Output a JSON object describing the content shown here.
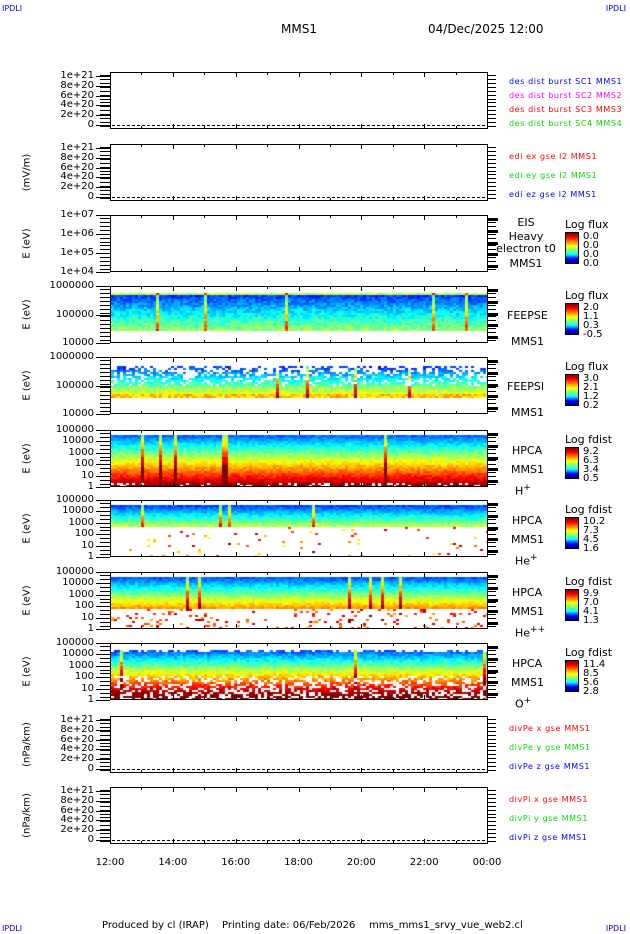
{
  "corners": {
    "tl": "IPDLI",
    "tr": "IPDLI",
    "bl": "IPDLI",
    "br": "IPDLI"
  },
  "header": {
    "mission": "MMS1",
    "datetime": "04/Dec/2025 12:00"
  },
  "footer": {
    "produced": "Produced by cl (IRAP)",
    "printing": "Printing date: 06/Feb/2026",
    "file": "mms_mms1_srvy_vue_web2.cl"
  },
  "colors": {
    "blue": "#0000ff",
    "magenta": "#ff00ff",
    "red": "#ff0000",
    "green": "#00dd00"
  },
  "chart_data": {
    "type": "heatmap",
    "x_ticks": [
      "12:00",
      "14:00",
      "16:00",
      "18:00",
      "20:00",
      "22:00",
      "00:00"
    ],
    "panels": [
      {
        "kind": "line",
        "ylabel": "",
        "yscale": "linear",
        "ylim": [
          -8e+19,
          1.08e+21
        ],
        "yticks": [
          "0",
          "2e+20",
          "4e+20",
          "6e+20",
          "8e+20",
          "1e+21"
        ],
        "ytick_values": [
          0,
          2e+20,
          4e+20,
          6e+20,
          8e+20,
          1e+21
        ],
        "dashed_zero": true,
        "legend": [
          {
            "text": "des dist burst SC1 MMS1",
            "color": "#0000ff"
          },
          {
            "text": "des dist burst SC2 MMS2",
            "color": "#ff00ff"
          },
          {
            "text": "des dist burst SC3 MMS3",
            "color": "#ff0000"
          },
          {
            "text": "des dist burst SC4 MMS4",
            "color": "#00dd00"
          }
        ]
      },
      {
        "kind": "line",
        "ylabel": "(mV/m)",
        "yscale": "linear",
        "ylim": [
          -8e+19,
          1.08e+21
        ],
        "yticks": [
          "0",
          "2e+20",
          "4e+20",
          "6e+20",
          "8e+20",
          "1e+21"
        ],
        "ytick_values": [
          0,
          2e+20,
          4e+20,
          6e+20,
          8e+20,
          1e+21
        ],
        "dashed_zero": true,
        "legend": [
          {
            "text": "edi ex gse l2 MMS1",
            "color": "#ff0000"
          },
          {
            "text": "edi ey gse l2 MMS1",
            "color": "#00dd00"
          },
          {
            "text": "edi ez gse l2 MMS1",
            "color": "#0000ff"
          }
        ]
      },
      {
        "kind": "spec",
        "profile": "empty",
        "ylabel": "E (eV)",
        "yscale": "log",
        "ylim": [
          10000.0,
          10000000.0
        ],
        "yticks": [
          "1e+04",
          "1e+05",
          "1e+06",
          "1e+07"
        ],
        "ytick_values": [
          10000.0,
          100000.0,
          1000000.0,
          10000000.0
        ],
        "labels": [
          "EIS",
          "Heavy electron t0",
          "MMS1"
        ],
        "cbar_title": "Log flux",
        "cbar_values": [
          "0.0",
          "0.0",
          "0.0",
          "0.0"
        ]
      },
      {
        "kind": "spec",
        "profile": "feepse",
        "ylabel": "E (eV)",
        "yscale": "log",
        "ylim": [
          10000.0,
          1000000.0
        ],
        "yticks": [
          "10000",
          "100000",
          "1000000"
        ],
        "ytick_values": [
          10000.0,
          100000.0,
          1000000.0
        ],
        "labels": [
          "FEEPSE",
          "MMS1"
        ],
        "cbar_title": "Log flux",
        "cbar_values": [
          "2.0",
          "1.1",
          "0.3",
          "-0.5"
        ]
      },
      {
        "kind": "spec",
        "profile": "feepsi",
        "ylabel": "E (eV)",
        "yscale": "log",
        "ylim": [
          10000.0,
          1000000.0
        ],
        "yticks": [
          "10000",
          "100000",
          "1000000"
        ],
        "ytick_values": [
          10000.0,
          100000.0,
          1000000.0
        ],
        "labels": [
          "FEEPSI",
          "MMS1"
        ],
        "cbar_title": "Log flux",
        "cbar_values": [
          "3.0",
          "2.1",
          "1.2",
          "0.2"
        ]
      },
      {
        "kind": "spec",
        "profile": "hplus",
        "ylabel": "E (eV)",
        "yscale": "log",
        "ylim": [
          1,
          100000.0
        ],
        "yticks": [
          "1",
          "10",
          "100",
          "1000",
          "10000",
          "100000"
        ],
        "ytick_values": [
          1,
          10,
          100,
          1000,
          10000,
          100000
        ],
        "labels": [
          "HPCA",
          "MMS1",
          "H+"
        ],
        "cbar_title": "Log fdist",
        "cbar_values": [
          "9.2",
          "6.3",
          "3.4",
          "0.5"
        ]
      },
      {
        "kind": "spec",
        "profile": "heplus",
        "ylabel": "E (eV)",
        "yscale": "log",
        "ylim": [
          1,
          100000.0
        ],
        "yticks": [
          "1",
          "10",
          "100",
          "1000",
          "10000",
          "100000"
        ],
        "ytick_values": [
          1,
          10,
          100,
          1000,
          10000,
          100000
        ],
        "labels": [
          "HPCA",
          "MMS1",
          "He+"
        ],
        "cbar_title": "Log fdist",
        "cbar_values": [
          "10.2",
          "7.3",
          "4.5",
          "1.6"
        ]
      },
      {
        "kind": "spec",
        "profile": "hepp",
        "ylabel": "E (eV)",
        "yscale": "log",
        "ylim": [
          1,
          100000.0
        ],
        "yticks": [
          "1",
          "10",
          "100",
          "1000",
          "10000",
          "100000"
        ],
        "ytick_values": [
          1,
          10,
          100,
          1000,
          10000,
          100000
        ],
        "labels": [
          "HPCA",
          "MMS1",
          "He++"
        ],
        "cbar_title": "Log fdist",
        "cbar_values": [
          "9.9",
          "7.0",
          "4.1",
          "1.3"
        ]
      },
      {
        "kind": "spec",
        "profile": "oplus",
        "ylabel": "E (eV)",
        "yscale": "log",
        "ylim": [
          1,
          100000.0
        ],
        "yticks": [
          "1",
          "10",
          "100",
          "1000",
          "10000",
          "100000"
        ],
        "ytick_values": [
          1,
          10,
          100,
          1000,
          10000,
          100000
        ],
        "labels": [
          "HPCA",
          "MMS1",
          "O+"
        ],
        "cbar_title": "Log fdist",
        "cbar_values": [
          "11.4",
          "8.5",
          "5.6",
          "2.8"
        ]
      },
      {
        "kind": "line",
        "ylabel": "(nPa/km)",
        "yscale": "linear",
        "ylim": [
          -8e+19,
          1.08e+21
        ],
        "yticks": [
          "0",
          "2e+20",
          "4e+20",
          "6e+20",
          "8e+20",
          "1e+21"
        ],
        "ytick_values": [
          0,
          2e+20,
          4e+20,
          6e+20,
          8e+20,
          1e+21
        ],
        "dashed_zero": true,
        "legend": [
          {
            "text": "divPe x gse MMS1",
            "color": "#ff0000"
          },
          {
            "text": "divPe y gse MMS1",
            "color": "#00dd00"
          },
          {
            "text": "divPe z gse MMS1",
            "color": "#0000ff"
          }
        ]
      },
      {
        "kind": "line",
        "ylabel": "(nPa/km)",
        "yscale": "linear",
        "ylim": [
          -8e+19,
          1.08e+21
        ],
        "yticks": [
          "0",
          "2e+20",
          "4e+20",
          "6e+20",
          "8e+20",
          "1e+21"
        ],
        "ytick_values": [
          0,
          2e+20,
          4e+20,
          6e+20,
          8e+20,
          1e+21
        ],
        "dashed_zero": true,
        "legend": [
          {
            "text": "divPi x gse MMS1",
            "color": "#ff0000"
          },
          {
            "text": "divPi y gse MMS1",
            "color": "#00dd00"
          },
          {
            "text": "divPi z gse MMS1",
            "color": "#0000ff"
          }
        ]
      }
    ]
  }
}
